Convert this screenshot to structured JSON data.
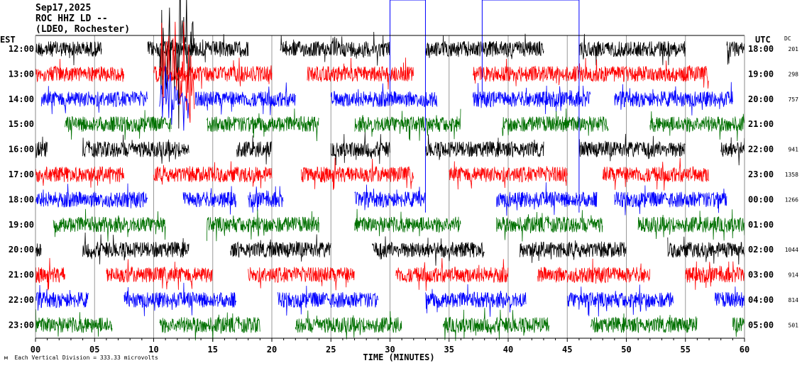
{
  "header": {
    "date": "Sep17,2025",
    "station": "ROC HHZ LD --",
    "location": "(LDEO, Rochester)"
  },
  "footer": {
    "scale_note": "Each Vertical Division =  333.33 microvolts",
    "corner_mark": "м"
  },
  "chart_data": {
    "type": "line",
    "title": "Sep17,2025 ROC HHZ LD -- (LDEO, Rochester)",
    "xlabel": "TIME (MINUTES)",
    "xlim": [
      0,
      60
    ],
    "x_ticks": [
      "00",
      "05",
      "10",
      "15",
      "20",
      "25",
      "30",
      "35",
      "40",
      "45",
      "50",
      "55",
      "60"
    ],
    "left_axis_label": "EST",
    "right_axis_label": "UTC",
    "dc_label": "DC",
    "colors": [
      "#000000",
      "#ff0000",
      "#0000ff",
      "#007000"
    ],
    "rows": [
      {
        "est": "12:00",
        "utc": "18:00",
        "dc": "201",
        "segments": [
          [
            0,
            5.6
          ],
          [
            9.5,
            18
          ],
          [
            20.7,
            30
          ],
          [
            33,
            43
          ],
          [
            46,
            55
          ],
          [
            58.5,
            60
          ]
        ]
      },
      {
        "est": "13:00",
        "utc": "19:00",
        "dc": "298",
        "segments": [
          [
            0,
            7.5
          ],
          [
            10,
            20
          ],
          [
            23,
            32
          ],
          [
            37,
            57
          ]
        ]
      },
      {
        "est": "14:00",
        "utc": "20:00",
        "dc": "757",
        "segments": [
          [
            0.5,
            9.5
          ],
          [
            13.5,
            22
          ],
          [
            25,
            34
          ],
          [
            37,
            47
          ],
          [
            49,
            59
          ]
        ]
      },
      {
        "est": "15:00",
        "utc": "21:00",
        "dc": "",
        "segments": [
          [
            2.5,
            11.5
          ],
          [
            14.5,
            24
          ],
          [
            27,
            36
          ],
          [
            39.5,
            48.5
          ],
          [
            52,
            60
          ]
        ]
      },
      {
        "est": "16:00",
        "utc": "22:00",
        "dc": "941",
        "segments": [
          [
            0,
            1
          ],
          [
            4,
            13
          ],
          [
            17,
            20
          ],
          [
            25,
            30
          ],
          [
            33,
            43
          ],
          [
            46,
            55
          ],
          [
            58,
            60
          ]
        ]
      },
      {
        "est": "17:00",
        "utc": "23:00",
        "dc": "1358",
        "segments": [
          [
            0,
            7.5
          ],
          [
            10,
            20
          ],
          [
            22.5,
            32
          ],
          [
            35,
            45
          ],
          [
            48,
            57
          ]
        ]
      },
      {
        "est": "18:00",
        "utc": "00:00",
        "dc": "1266",
        "segments": [
          [
            0,
            9.5
          ],
          [
            12.5,
            17
          ],
          [
            18,
            21
          ],
          [
            27,
            33
          ],
          [
            39,
            47.5
          ],
          [
            49,
            58.5
          ]
        ]
      },
      {
        "est": "19:00",
        "utc": "01:00",
        "dc": "",
        "segments": [
          [
            1.5,
            11
          ],
          [
            14.5,
            24
          ],
          [
            27,
            36
          ],
          [
            39,
            48
          ],
          [
            51,
            60
          ]
        ]
      },
      {
        "est": "20:00",
        "utc": "02:00",
        "dc": "1044",
        "segments": [
          [
            0,
            0.5
          ],
          [
            4,
            13
          ],
          [
            16.5,
            25
          ],
          [
            28.5,
            38
          ],
          [
            41,
            50
          ],
          [
            53.5,
            60
          ]
        ]
      },
      {
        "est": "21:00",
        "utc": "03:00",
        "dc": "914",
        "segments": [
          [
            0,
            2.5
          ],
          [
            6,
            15
          ],
          [
            18,
            27
          ],
          [
            30.5,
            40
          ],
          [
            42.5,
            52
          ],
          [
            55,
            60
          ]
        ]
      },
      {
        "est": "22:00",
        "utc": "04:00",
        "dc": "814",
        "segments": [
          [
            0,
            4.5
          ],
          [
            7.5,
            17
          ],
          [
            20.5,
            29
          ],
          [
            33,
            41.5
          ],
          [
            45,
            54
          ],
          [
            57.5,
            60
          ]
        ]
      },
      {
        "est": "23:00",
        "utc": "05:00",
        "dc": "501",
        "segments": [
          [
            0,
            6.5
          ],
          [
            10.5,
            19
          ],
          [
            22,
            31
          ],
          [
            34.5,
            43.5
          ],
          [
            47,
            56
          ],
          [
            59,
            60
          ]
        ]
      }
    ],
    "events": [
      {
        "row": 0,
        "from": 10.5,
        "to": 13.5,
        "amp": 4
      },
      {
        "row": 1,
        "from": 10.5,
        "to": 13.5,
        "amp": 3
      },
      {
        "row": 2,
        "from": 10.5,
        "to": 13,
        "amp": 2
      }
    ],
    "pulses": [
      {
        "row": 2,
        "from": 30,
        "to": 33
      },
      {
        "row": 2,
        "from": 37.8,
        "to": 46
      }
    ]
  }
}
